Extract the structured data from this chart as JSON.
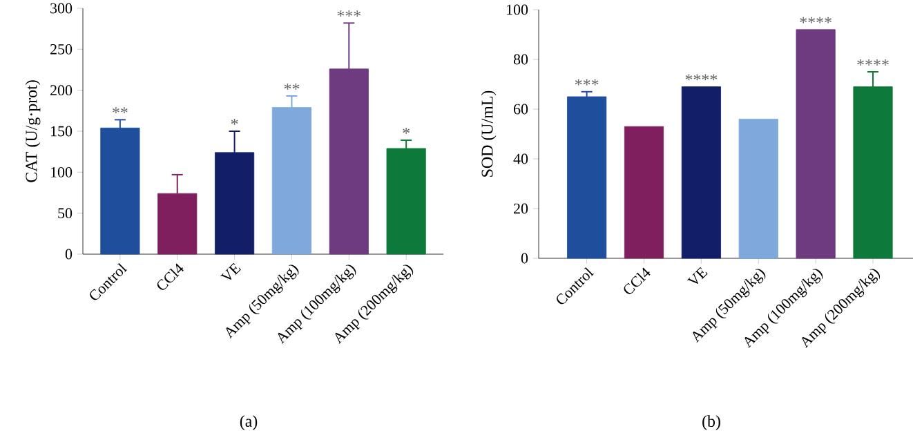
{
  "chart_data": [
    {
      "type": "bar",
      "title": "(a)",
      "ylabel": "CAT (U/g·prot)",
      "categories": [
        "Control",
        "CCl4",
        "VE",
        "Amp (50mg/kg)",
        "Amp (100mg/kg)",
        "Amp (200mg/kg)"
      ],
      "values": [
        154,
        74,
        124,
        179,
        226,
        129
      ],
      "errors": [
        10,
        23,
        26,
        14,
        56,
        10
      ],
      "colors": [
        "#1f4e9c",
        "#7f1f5e",
        "#121f68",
        "#7fa9dc",
        "#6e3b80",
        "#0d7a3a"
      ],
      "ylim": [
        0,
        300
      ],
      "yticks": [
        0,
        50,
        100,
        150,
        200,
        250,
        300
      ],
      "annotations": [
        {
          "text": "**",
          "x": "Control",
          "y": 164
        },
        {
          "text": "*",
          "x": "VE",
          "y": 150
        },
        {
          "text": "**",
          "x": "Amp (50mg/kg)",
          "y": 193
        },
        {
          "text": "***",
          "x": "Amp (100mg/kg)",
          "y": 282
        },
        {
          "text": "*",
          "x": "Amp (200mg/kg)",
          "y": 139
        }
      ]
    },
    {
      "type": "bar",
      "title": "(b)",
      "ylabel": "SOD (U/mL)",
      "categories": [
        "Control",
        "CCl4",
        "VE",
        "Amp (50mg/kg)",
        "Amp (100mg/kg)",
        "Amp (200mg/kg)"
      ],
      "values": [
        65,
        53,
        69,
        56,
        92,
        69
      ],
      "errors": [
        2,
        null,
        null,
        null,
        null,
        6
      ],
      "colors": [
        "#1f4e9c",
        "#7f1f5e",
        "#121f68",
        "#7fa9dc",
        "#6e3b80",
        "#0d7a3a"
      ],
      "ylim": [
        0,
        100
      ],
      "yticks": [
        0,
        20,
        40,
        60,
        80,
        100
      ],
      "annotations": [
        {
          "text": "***",
          "x": "Control",
          "y": 67
        },
        {
          "text": "****",
          "x": "VE",
          "y": 69
        },
        {
          "text": "****",
          "x": "Amp (100mg/kg)",
          "y": 92
        },
        {
          "text": "****",
          "x": "Amp (200mg/kg)",
          "y": 75
        }
      ]
    }
  ]
}
